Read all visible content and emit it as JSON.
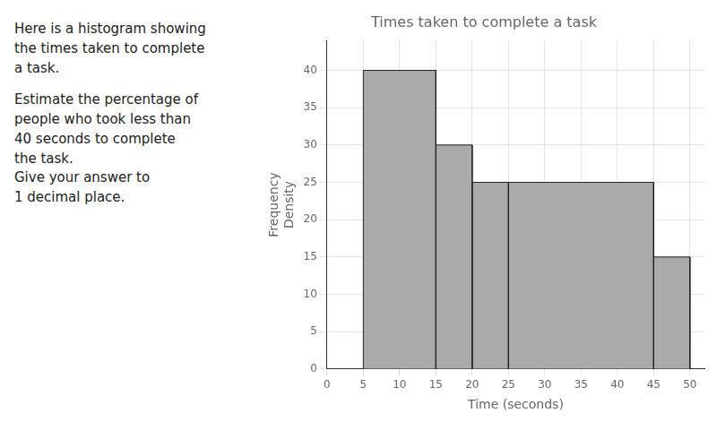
{
  "chart_data": {
    "type": "histogram",
    "title": "Times taken to complete a task",
    "x_label": "Time (seconds)",
    "y_label": "Frequency\nDensity",
    "bins": [
      5,
      15,
      20,
      25,
      45,
      50
    ],
    "values": [
      40,
      30,
      25,
      25,
      15
    ],
    "color": "#aaaaaa",
    "xlim": [
      0,
      52
    ],
    "ylim": [
      0,
      44
    ],
    "xticks": [
      0,
      5,
      10,
      15,
      20,
      25,
      30,
      35,
      40,
      45,
      50
    ],
    "yticks": [
      0,
      5,
      10,
      15,
      20,
      25,
      30,
      35,
      40
    ],
    "grid": true,
    "annotations": [
      [
        "Here is a histogram showing",
        "the times taken to complete",
        "a task."
      ],
      [
        "Estimate the percentage of",
        "people who took less than",
        "40 seconds to complete",
        "the task.",
        "Give your answer to",
        "1 decimal place."
      ]
    ]
  }
}
